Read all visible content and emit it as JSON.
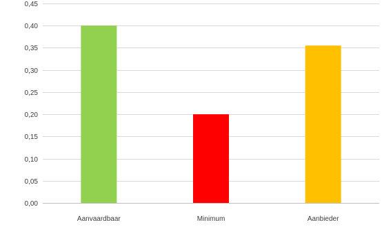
{
  "chart_data": {
    "type": "bar",
    "title": "",
    "xlabel": "",
    "ylabel": "",
    "categories": [
      "Aanvaardbaar",
      "Minimum",
      "Aanbieder"
    ],
    "values": [
      0.4,
      0.2,
      0.355
    ],
    "colors": [
      "#92d050",
      "#ff0000",
      "#ffc000"
    ],
    "ylim": [
      0,
      0.45
    ],
    "yticks": [
      0,
      0.05,
      0.1,
      0.15,
      0.2,
      0.25,
      0.3,
      0.35,
      0.4,
      0.45
    ],
    "ytick_labels": [
      "0,00",
      "0,05",
      "0,10",
      "0,15",
      "0,20",
      "0,25",
      "0,30",
      "0,35",
      "0,40",
      "0,45"
    ],
    "grid": true,
    "legend": "none"
  }
}
